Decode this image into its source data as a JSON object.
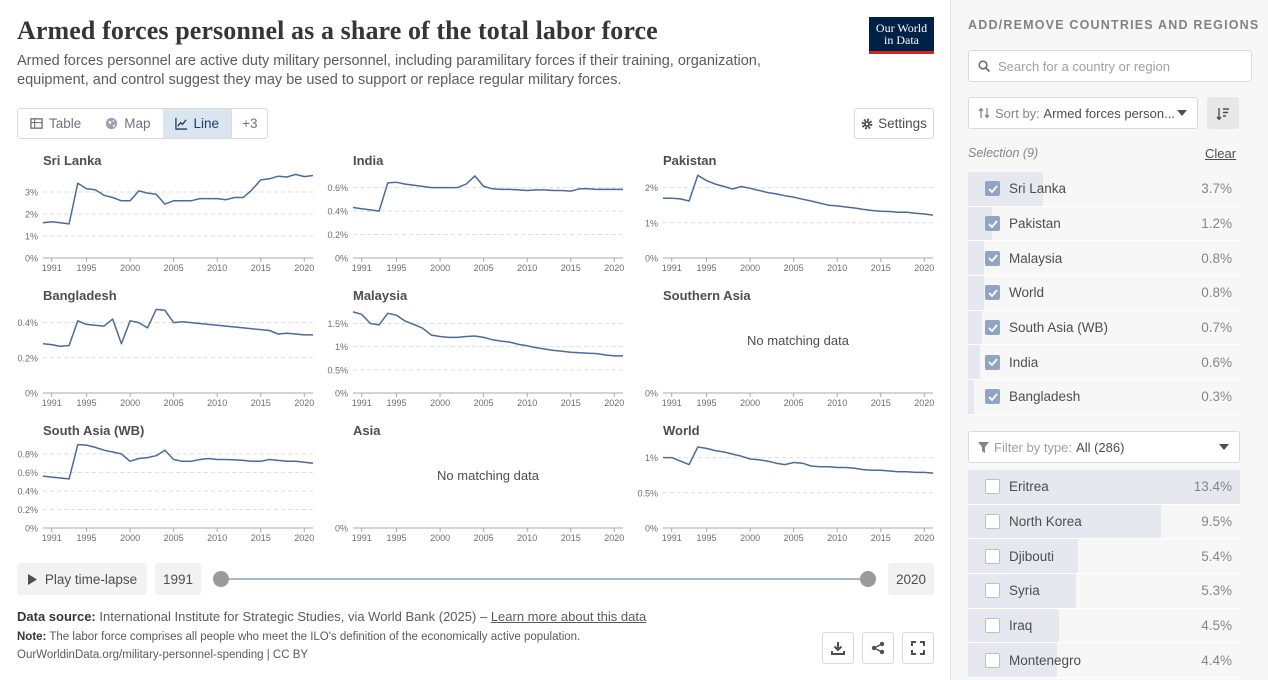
{
  "title": "Armed forces personnel as a share of the total labor force",
  "subtitle": "Armed forces personnel are active duty military personnel, including paramilitary forces if their training, organization, equipment, and control suggest they may be used to support or replace regular military forces.",
  "logo": {
    "line1": "Our World",
    "line2": "in Data"
  },
  "tabs": [
    {
      "label": "Table",
      "icon": "table-icon"
    },
    {
      "label": "Map",
      "icon": "globe-icon"
    },
    {
      "label": "Line",
      "icon": "line-chart-icon"
    },
    {
      "label": "+3",
      "icon": ""
    }
  ],
  "settings_label": "Settings",
  "timeline": {
    "play_label": "Play time-lapse",
    "start": "1991",
    "end": "2020"
  },
  "footer": {
    "source_label": "Data source:",
    "source_text": "International Institute for Strategic Studies, via World Bank (2025) –",
    "source_link": "Learn more about this data",
    "note_label": "Note:",
    "note_text": "The labor force comprises all people who meet the ILO's definition of the economically active population.",
    "url": "OurWorldinData.org/military-personnel-spending | CC BY"
  },
  "sidebar": {
    "heading": "ADD/REMOVE COUNTRIES AND REGIONS",
    "search_placeholder": "Search for a country or region",
    "sort_label": "Sort by:",
    "sort_value": "Armed forces person...",
    "selection_label": "Selection (9)",
    "clear_label": "Clear",
    "selected": [
      {
        "name": "Sri Lanka",
        "value": "3.7%",
        "share": 0.276
      },
      {
        "name": "Pakistan",
        "value": "1.2%",
        "share": 0.09
      },
      {
        "name": "Malaysia",
        "value": "0.8%",
        "share": 0.06
      },
      {
        "name": "World",
        "value": "0.8%",
        "share": 0.06
      },
      {
        "name": "South Asia (WB)",
        "value": "0.7%",
        "share": 0.052
      },
      {
        "name": "India",
        "value": "0.6%",
        "share": 0.045
      },
      {
        "name": "Bangladesh",
        "value": "0.3%",
        "share": 0.022
      }
    ],
    "filter_label": "Filter by type:",
    "filter_value": "All (286)",
    "available": [
      {
        "name": "Eritrea",
        "value": "13.4%",
        "share": 1.0
      },
      {
        "name": "North Korea",
        "value": "9.5%",
        "share": 0.709
      },
      {
        "name": "Djibouti",
        "value": "5.4%",
        "share": 0.403
      },
      {
        "name": "Syria",
        "value": "5.3%",
        "share": 0.396
      },
      {
        "name": "Iraq",
        "value": "4.5%",
        "share": 0.336
      },
      {
        "name": "Montenegro",
        "value": "4.4%",
        "share": 0.328
      }
    ]
  },
  "colors": {
    "line": "#4c6a9c",
    "grid": "#dddddd",
    "accent": "#ce261e",
    "brand": "#002147"
  },
  "chart_data": {
    "type": "line",
    "x_ticks": [
      1991,
      1995,
      2000,
      2005,
      2010,
      2015,
      2020
    ],
    "x_range": [
      1990,
      2021
    ],
    "no_data_text": "No matching data",
    "panels": [
      {
        "name": "Sri Lanka",
        "ylim": [
          0,
          4
        ],
        "yticks": [
          0,
          1,
          2,
          3
        ],
        "ytick_labels": [
          "0%",
          "1%",
          "2%",
          "3%"
        ],
        "x": [
          1990,
          1991,
          1992,
          1993,
          1994,
          1995,
          1996,
          1997,
          1998,
          1999,
          2000,
          2001,
          2002,
          2003,
          2004,
          2005,
          2006,
          2007,
          2008,
          2009,
          2010,
          2011,
          2012,
          2013,
          2014,
          2015,
          2016,
          2017,
          2018,
          2019,
          2020,
          2021
        ],
        "y": [
          1.6,
          1.65,
          1.6,
          1.55,
          3.4,
          3.15,
          3.1,
          2.85,
          2.75,
          2.6,
          2.6,
          3.05,
          2.95,
          2.9,
          2.45,
          2.6,
          2.6,
          2.6,
          2.7,
          2.7,
          2.7,
          2.65,
          2.75,
          2.75,
          3.1,
          3.55,
          3.6,
          3.72,
          3.68,
          3.8,
          3.7,
          3.75
        ]
      },
      {
        "name": "India",
        "ylim": [
          0,
          0.75
        ],
        "yticks": [
          0,
          0.2,
          0.4,
          0.6
        ],
        "ytick_labels": [
          "0%",
          "0.2%",
          "0.4%",
          "0.6%"
        ],
        "x": [
          1990,
          1991,
          1992,
          1993,
          1994,
          1995,
          1996,
          1997,
          1998,
          1999,
          2000,
          2001,
          2002,
          2003,
          2004,
          2005,
          2006,
          2007,
          2008,
          2009,
          2010,
          2011,
          2012,
          2013,
          2014,
          2015,
          2016,
          2017,
          2018,
          2019,
          2020,
          2021
        ],
        "y": [
          0.43,
          0.42,
          0.41,
          0.4,
          0.64,
          0.645,
          0.63,
          0.62,
          0.61,
          0.6,
          0.6,
          0.6,
          0.6,
          0.63,
          0.7,
          0.61,
          0.59,
          0.585,
          0.585,
          0.58,
          0.575,
          0.58,
          0.58,
          0.575,
          0.575,
          0.57,
          0.59,
          0.59,
          0.585,
          0.585,
          0.585,
          0.585
        ]
      },
      {
        "name": "Pakistan",
        "ylim": [
          0,
          2.5
        ],
        "yticks": [
          0,
          1,
          2
        ],
        "ytick_labels": [
          "0%",
          "1%",
          "2%"
        ],
        "x": [
          1990,
          1991,
          1992,
          1993,
          1994,
          1995,
          1996,
          1997,
          1998,
          1999,
          2000,
          2001,
          2002,
          2003,
          2004,
          2005,
          2006,
          2007,
          2008,
          2009,
          2010,
          2011,
          2012,
          2013,
          2014,
          2015,
          2016,
          2017,
          2018,
          2019,
          2020,
          2021
        ],
        "y": [
          1.7,
          1.7,
          1.68,
          1.62,
          2.35,
          2.2,
          2.1,
          2.03,
          1.96,
          2.03,
          1.98,
          1.92,
          1.86,
          1.82,
          1.77,
          1.73,
          1.67,
          1.62,
          1.56,
          1.5,
          1.48,
          1.45,
          1.42,
          1.38,
          1.35,
          1.33,
          1.32,
          1.3,
          1.3,
          1.27,
          1.25,
          1.22
        ]
      },
      {
        "name": "Bangladesh",
        "ylim": [
          0,
          0.5
        ],
        "yticks": [
          0,
          0.2,
          0.4
        ],
        "ytick_labels": [
          "0%",
          "0.2%",
          "0.4%"
        ],
        "x": [
          1990,
          1991,
          1992,
          1993,
          1994,
          1995,
          1996,
          1997,
          1998,
          1999,
          2000,
          2001,
          2002,
          2003,
          2004,
          2005,
          2006,
          2007,
          2008,
          2009,
          2010,
          2011,
          2012,
          2013,
          2014,
          2015,
          2016,
          2017,
          2018,
          2019,
          2020,
          2021
        ],
        "y": [
          0.28,
          0.275,
          0.265,
          0.27,
          0.41,
          0.39,
          0.385,
          0.38,
          0.42,
          0.28,
          0.41,
          0.4,
          0.37,
          0.475,
          0.47,
          0.4,
          0.405,
          0.4,
          0.395,
          0.39,
          0.385,
          0.38,
          0.375,
          0.37,
          0.365,
          0.36,
          0.355,
          0.335,
          0.34,
          0.335,
          0.33,
          0.33
        ]
      },
      {
        "name": "Malaysia",
        "ylim": [
          0,
          1.9
        ],
        "yticks": [
          0,
          0.5,
          1,
          1.5
        ],
        "ytick_labels": [
          "0%",
          "0.5%",
          "1%",
          "1.5%"
        ],
        "x": [
          1990,
          1991,
          1992,
          1993,
          1994,
          1995,
          1996,
          1997,
          1998,
          1999,
          2000,
          2001,
          2002,
          2003,
          2004,
          2005,
          2006,
          2007,
          2008,
          2009,
          2010,
          2011,
          2012,
          2013,
          2014,
          2015,
          2016,
          2017,
          2018,
          2019,
          2020,
          2021
        ],
        "y": [
          1.75,
          1.7,
          1.5,
          1.47,
          1.72,
          1.68,
          1.55,
          1.48,
          1.4,
          1.25,
          1.22,
          1.2,
          1.2,
          1.22,
          1.23,
          1.2,
          1.15,
          1.12,
          1.1,
          1.05,
          1.02,
          0.98,
          0.95,
          0.92,
          0.9,
          0.88,
          0.87,
          0.86,
          0.85,
          0.82,
          0.8,
          0.8
        ]
      },
      {
        "name": "Southern Asia",
        "no_data": true
      },
      {
        "name": "South Asia (WB)",
        "ylim": [
          0,
          0.95
        ],
        "yticks": [
          0,
          0.2,
          0.4,
          0.6,
          0.8
        ],
        "ytick_labels": [
          "0%",
          "0.2%",
          "0.4%",
          "0.6%",
          "0.8%"
        ],
        "x": [
          1990,
          1991,
          1992,
          1993,
          1994,
          1995,
          1996,
          1997,
          1998,
          1999,
          2000,
          2001,
          2002,
          2003,
          2004,
          2005,
          2006,
          2007,
          2008,
          2009,
          2010,
          2011,
          2012,
          2013,
          2014,
          2015,
          2016,
          2017,
          2018,
          2019,
          2020,
          2021
        ],
        "y": [
          0.56,
          0.55,
          0.54,
          0.53,
          0.9,
          0.895,
          0.87,
          0.84,
          0.82,
          0.8,
          0.72,
          0.75,
          0.76,
          0.78,
          0.84,
          0.74,
          0.72,
          0.72,
          0.74,
          0.75,
          0.74,
          0.74,
          0.735,
          0.73,
          0.72,
          0.72,
          0.74,
          0.73,
          0.72,
          0.72,
          0.71,
          0.7
        ]
      },
      {
        "name": "Asia",
        "no_data": true
      },
      {
        "name": "World",
        "ylim": [
          0,
          1.25
        ],
        "yticks": [
          0,
          0.5,
          1
        ],
        "ytick_labels": [
          "0%",
          "0.5%",
          "1%"
        ],
        "x": [
          1990,
          1991,
          1992,
          1993,
          1994,
          1995,
          1996,
          1997,
          1998,
          1999,
          2000,
          2001,
          2002,
          2003,
          2004,
          2005,
          2006,
          2007,
          2008,
          2009,
          2010,
          2011,
          2012,
          2013,
          2014,
          2015,
          2016,
          2017,
          2018,
          2019,
          2020,
          2021
        ],
        "y": [
          1.0,
          1.0,
          0.95,
          0.9,
          1.15,
          1.13,
          1.1,
          1.08,
          1.05,
          1.02,
          0.98,
          0.97,
          0.95,
          0.92,
          0.9,
          0.93,
          0.92,
          0.88,
          0.87,
          0.87,
          0.86,
          0.86,
          0.85,
          0.83,
          0.82,
          0.82,
          0.81,
          0.8,
          0.8,
          0.79,
          0.79,
          0.78
        ]
      }
    ]
  }
}
